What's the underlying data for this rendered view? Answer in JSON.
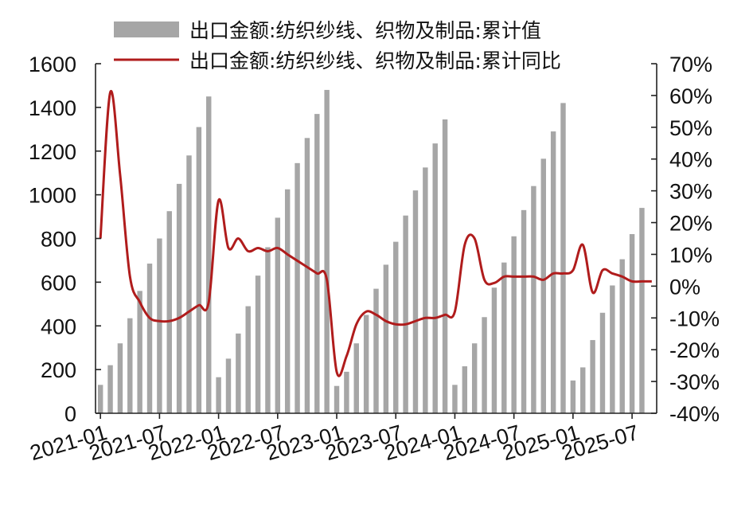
{
  "chart_data": {
    "type": "bar",
    "colors": {
      "bars": "#a6a6a6",
      "line": "#b01c1c",
      "axis": "#222222"
    },
    "legend": {
      "placement": "top",
      "entries": [
        {
          "name": "出口金额:纺织纱线、织物及制品:累计值",
          "kind": "bar"
        },
        {
          "name": "出口金额:纺织纱线、织物及制品:累计同比",
          "kind": "line"
        }
      ]
    },
    "x": [
      "2021-01",
      "2021-02",
      "2021-03",
      "2021-04",
      "2021-05",
      "2021-06",
      "2021-07",
      "2021-08",
      "2021-09",
      "2021-10",
      "2021-11",
      "2021-12",
      "2022-01",
      "2022-02",
      "2022-03",
      "2022-04",
      "2022-05",
      "2022-06",
      "2022-07",
      "2022-08",
      "2022-09",
      "2022-10",
      "2022-11",
      "2022-12",
      "2023-01",
      "2023-02",
      "2023-03",
      "2023-04",
      "2023-05",
      "2023-06",
      "2023-07",
      "2023-08",
      "2023-09",
      "2023-10",
      "2023-11",
      "2023-12",
      "2024-01",
      "2024-02",
      "2024-03",
      "2024-04",
      "2024-05",
      "2024-06",
      "2024-07",
      "2024-08",
      "2024-09",
      "2024-10",
      "2024-11",
      "2024-12",
      "2025-01",
      "2025-02",
      "2025-03",
      "2025-04",
      "2025-05",
      "2025-06",
      "2025-07",
      "2025-08",
      "2025-09"
    ],
    "x_tick_labels": [
      "2021-01",
      "2021-07",
      "2022-01",
      "2022-07",
      "2023-01",
      "2023-07",
      "2024-01",
      "2024-07",
      "2025-01",
      "2025-07"
    ],
    "series": [
      {
        "name": "出口金额:纺织纱线、织物及制品:累计值",
        "axis": "left",
        "values": [
          130,
          220,
          320,
          435,
          560,
          685,
          800,
          925,
          1050,
          1180,
          1310,
          1450,
          165,
          250,
          365,
          490,
          630,
          760,
          895,
          1025,
          1145,
          1260,
          1370,
          1480,
          125,
          190,
          320,
          450,
          570,
          680,
          785,
          905,
          1020,
          1125,
          1235,
          1345,
          130,
          215,
          320,
          440,
          575,
          690,
          810,
          930,
          1040,
          1165,
          1290,
          1420,
          150,
          210,
          335,
          460,
          585,
          705,
          820,
          940,
          null
        ]
      },
      {
        "name": "出口金额:纺织纱线、织物及制品:累计同比",
        "axis": "right",
        "values": [
          15,
          61,
          35,
          3,
          -5,
          -10,
          -11,
          -11,
          -10,
          -8,
          -6,
          -5,
          27,
          12,
          15,
          11,
          12,
          11,
          12,
          10,
          8,
          6,
          4,
          2,
          -27,
          -22,
          -12,
          -8,
          -9,
          -11,
          -12,
          -12,
          -11,
          -10,
          -10,
          -9,
          -8,
          13,
          15,
          2,
          1,
          3,
          3,
          3,
          3,
          2,
          4,
          4,
          5,
          13,
          -2,
          5,
          4,
          3,
          1.5,
          1.5,
          1.5
        ]
      }
    ],
    "y_left": {
      "min": 0,
      "max": 1600,
      "ticks": [
        "0",
        "200",
        "400",
        "600",
        "800",
        "1000",
        "1200",
        "1400",
        "1600"
      ]
    },
    "y_right": {
      "min": -40,
      "max": 70,
      "ticks": [
        "-40%",
        "-30%",
        "-20%",
        "-10%",
        "0%",
        "10%",
        "20%",
        "30%",
        "40%",
        "50%",
        "60%",
        "70%"
      ]
    },
    "grid": false
  }
}
